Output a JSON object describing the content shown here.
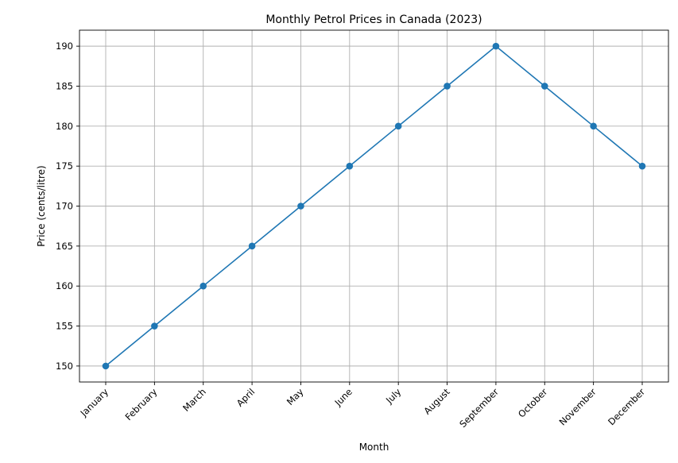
{
  "chart_data": {
    "type": "line",
    "title": "Monthly Petrol Prices in Canada (2023)",
    "xlabel": "Month",
    "ylabel": "Price (cents/litre)",
    "categories": [
      "January",
      "February",
      "March",
      "April",
      "May",
      "June",
      "July",
      "August",
      "September",
      "October",
      "November",
      "December"
    ],
    "series": [
      {
        "values": [
          150,
          155,
          160,
          165,
          170,
          175,
          180,
          185,
          190,
          185,
          180,
          175
        ]
      }
    ],
    "ylim": [
      148,
      192
    ],
    "yticks": [
      150,
      155,
      160,
      165,
      170,
      175,
      180,
      185,
      190
    ],
    "grid": true,
    "marker": "circle",
    "color": "#1f77b4",
    "x_tick_rotation_deg": 45
  }
}
